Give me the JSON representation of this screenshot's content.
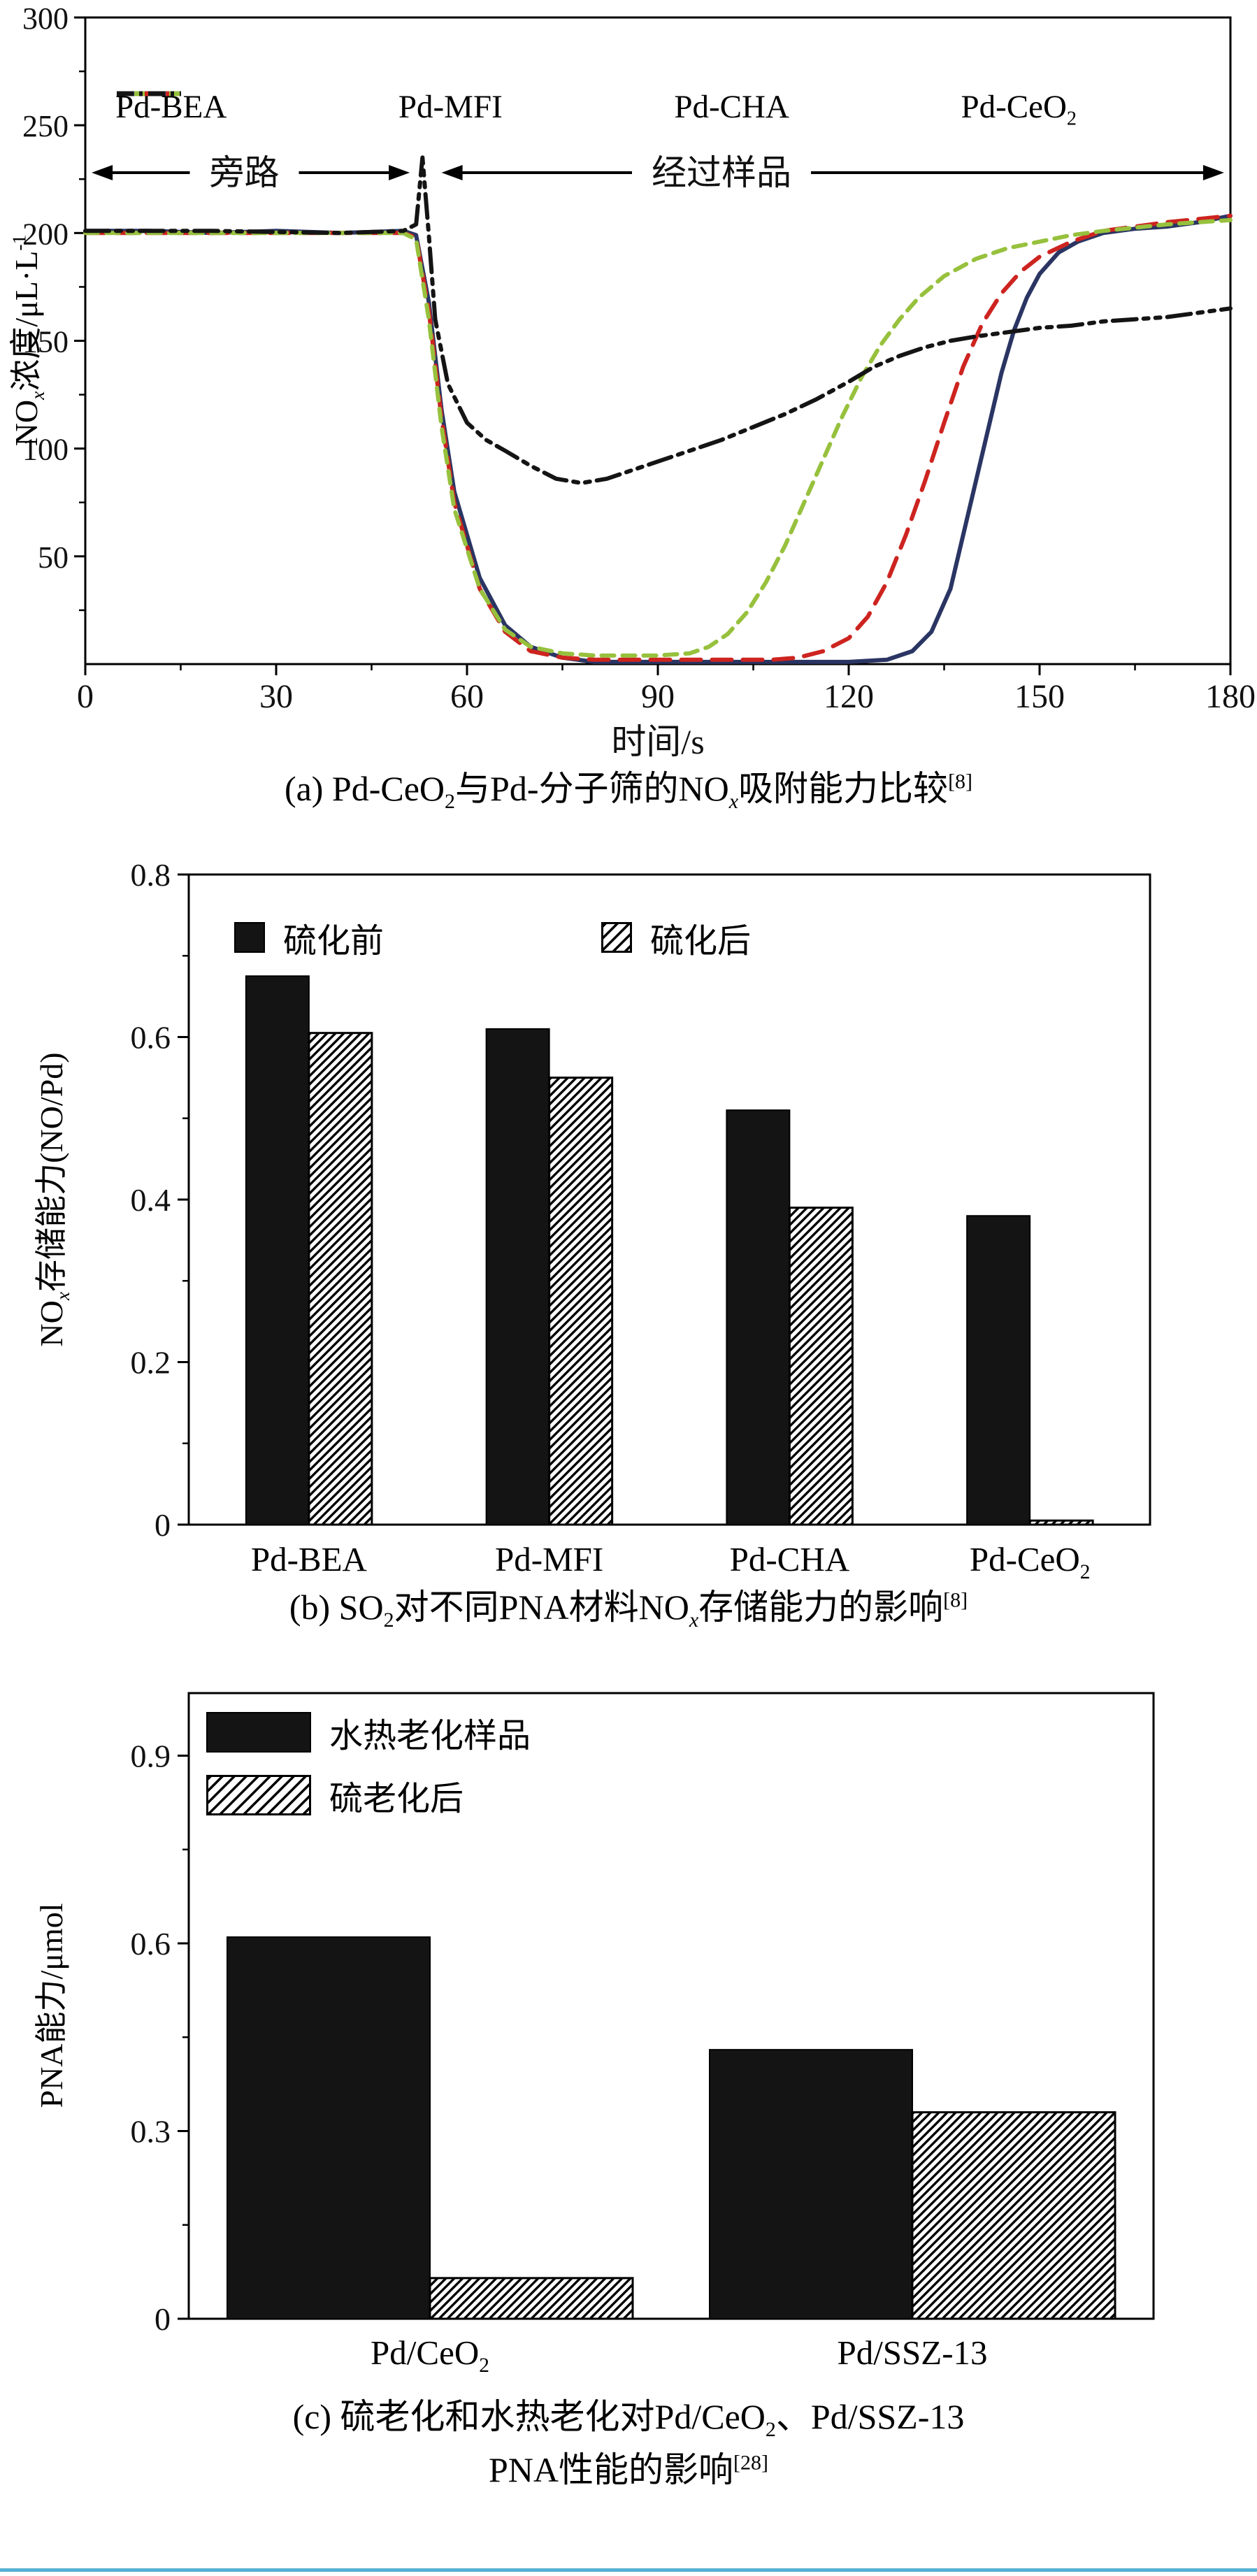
{
  "figure": {
    "background": "#ffffff",
    "divider_color": "#55b0d4"
  },
  "chart_data": [
    {
      "id": "a",
      "type": "line",
      "xlabel": "时间/s",
      "ylabel": [
        {
          "t": "NO"
        },
        {
          "t": "x",
          "m": "subi"
        },
        {
          "t": "浓度/μL·L"
        },
        {
          "t": "-1",
          "m": "sup"
        }
      ],
      "caption": [
        {
          "t": "(a) Pd-CeO"
        },
        {
          "t": "2",
          "m": "sub"
        },
        {
          "t": "与Pd-分子筛的NO"
        },
        {
          "t": "x",
          "m": "subi"
        },
        {
          "t": "吸附能力比较"
        },
        {
          "t": "[8]",
          "m": "sup"
        }
      ],
      "xlim": [
        0,
        180
      ],
      "ylim": [
        0,
        300
      ],
      "xticks": [
        0,
        30,
        60,
        90,
        120,
        150,
        180
      ],
      "xtick_labels": [
        "0",
        "30",
        "60",
        "90",
        "120",
        "150",
        "180"
      ],
      "yticks": [
        50,
        100,
        150,
        200,
        250,
        300
      ],
      "ytick_labels": [
        "50",
        "100",
        "150",
        "200",
        "250",
        "300"
      ],
      "legend_position": "top-inside-row",
      "annotations": [
        {
          "label": "旁路",
          "x0": 1,
          "x1": 51,
          "xc": 25,
          "y": 228
        },
        {
          "label": "经过样品",
          "x0": 56,
          "x1": 179,
          "xc": 100,
          "y": 228
        }
      ],
      "series": [
        {
          "name": [
            {
              "t": "Pd-BEA"
            }
          ],
          "color": "#2a3563",
          "style": "solid",
          "points": [
            [
              0,
              201
            ],
            [
              10,
              201
            ],
            [
              20,
              200
            ],
            [
              30,
              201
            ],
            [
              40,
              200
            ],
            [
              50,
              201
            ],
            [
              52,
              199
            ],
            [
              54,
              168
            ],
            [
              56,
              118
            ],
            [
              58,
              80
            ],
            [
              62,
              40
            ],
            [
              66,
              18
            ],
            [
              70,
              8
            ],
            [
              75,
              3
            ],
            [
              80,
              1
            ],
            [
              90,
              1
            ],
            [
              100,
              1
            ],
            [
              110,
              1
            ],
            [
              120,
              1
            ],
            [
              126,
              2
            ],
            [
              130,
              6
            ],
            [
              133,
              15
            ],
            [
              136,
              35
            ],
            [
              138,
              60
            ],
            [
              140,
              85
            ],
            [
              142,
              110
            ],
            [
              144,
              135
            ],
            [
              146,
              155
            ],
            [
              148,
              170
            ],
            [
              150,
              181
            ],
            [
              153,
              191
            ],
            [
              156,
              196
            ],
            [
              160,
              200
            ],
            [
              165,
              202
            ],
            [
              170,
              203
            ],
            [
              175,
              205
            ],
            [
              180,
              208
            ]
          ]
        },
        {
          "name": [
            {
              "t": "Pd-MFI"
            }
          ],
          "color": "#cd2420",
          "style": "dash",
          "points": [
            [
              0,
              200
            ],
            [
              20,
              200
            ],
            [
              40,
              200
            ],
            [
              50,
              200
            ],
            [
              52,
              198
            ],
            [
              54,
              164
            ],
            [
              56,
              114
            ],
            [
              58,
              75
            ],
            [
              62,
              35
            ],
            [
              66,
              15
            ],
            [
              70,
              6
            ],
            [
              75,
              3
            ],
            [
              80,
              2
            ],
            [
              90,
              2
            ],
            [
              100,
              2
            ],
            [
              108,
              2
            ],
            [
              112,
              3
            ],
            [
              116,
              6
            ],
            [
              120,
              12
            ],
            [
              123,
              22
            ],
            [
              126,
              38
            ],
            [
              129,
              60
            ],
            [
              132,
              85
            ],
            [
              135,
              112
            ],
            [
              138,
              138
            ],
            [
              141,
              158
            ],
            [
              144,
              172
            ],
            [
              147,
              182
            ],
            [
              150,
              189
            ],
            [
              155,
              196
            ],
            [
              160,
              201
            ],
            [
              170,
              205
            ],
            [
              180,
              208
            ]
          ]
        },
        {
          "name": [
            {
              "t": "Pd-CHA"
            }
          ],
          "color": "#97c13d",
          "style": "dash2",
          "points": [
            [
              0,
              200
            ],
            [
              20,
              200
            ],
            [
              40,
              200
            ],
            [
              50,
              200
            ],
            [
              52,
              197
            ],
            [
              54,
              160
            ],
            [
              56,
              110
            ],
            [
              58,
              72
            ],
            [
              62,
              35
            ],
            [
              66,
              16
            ],
            [
              70,
              8
            ],
            [
              75,
              5
            ],
            [
              80,
              4
            ],
            [
              85,
              4
            ],
            [
              90,
              4
            ],
            [
              95,
              5
            ],
            [
              98,
              8
            ],
            [
              101,
              14
            ],
            [
              104,
              24
            ],
            [
              107,
              38
            ],
            [
              110,
              55
            ],
            [
              113,
              75
            ],
            [
              116,
              95
            ],
            [
              119,
              115
            ],
            [
              122,
              133
            ],
            [
              125,
              148
            ],
            [
              128,
              160
            ],
            [
              131,
              170
            ],
            [
              135,
              180
            ],
            [
              140,
              188
            ],
            [
              145,
              193
            ],
            [
              150,
              196
            ],
            [
              155,
              199
            ],
            [
              160,
              201
            ],
            [
              170,
              204
            ],
            [
              180,
              206
            ]
          ]
        },
        {
          "name": [
            {
              "t": "Pd-CeO"
            },
            {
              "t": "2",
              "m": "sub"
            }
          ],
          "color": "#141414",
          "style": "dashdot",
          "points": [
            [
              0,
              201
            ],
            [
              20,
              201
            ],
            [
              40,
              200
            ],
            [
              50,
              201
            ],
            [
              52,
              204
            ],
            [
              53,
              235
            ],
            [
              54,
              199
            ],
            [
              55,
              160
            ],
            [
              57,
              130
            ],
            [
              60,
              112
            ],
            [
              63,
              104
            ],
            [
              66,
              99
            ],
            [
              70,
              92
            ],
            [
              74,
              86
            ],
            [
              78,
              84
            ],
            [
              82,
              86
            ],
            [
              86,
              90
            ],
            [
              90,
              94
            ],
            [
              95,
              99
            ],
            [
              100,
              104
            ],
            [
              105,
              110
            ],
            [
              110,
              116
            ],
            [
              115,
              123
            ],
            [
              120,
              131
            ],
            [
              124,
              138
            ],
            [
              128,
              143
            ],
            [
              132,
              147
            ],
            [
              136,
              150
            ],
            [
              140,
              152
            ],
            [
              145,
              154
            ],
            [
              150,
              156
            ],
            [
              155,
              157
            ],
            [
              160,
              159
            ],
            [
              165,
              160
            ],
            [
              170,
              161
            ],
            [
              175,
              163
            ],
            [
              180,
              165
            ]
          ]
        }
      ]
    },
    {
      "id": "b",
      "type": "bar",
      "ylabel": [
        {
          "t": "NO"
        },
        {
          "t": "x",
          "m": "subi"
        },
        {
          "t": "存储能力(NO/Pd)"
        }
      ],
      "caption": [
        {
          "t": "(b) SO"
        },
        {
          "t": "2",
          "m": "sub"
        },
        {
          "t": "对不同PNA材料NO"
        },
        {
          "t": "x",
          "m": "subi"
        },
        {
          "t": "存储能力的影响"
        },
        {
          "t": "[8]",
          "m": "sup"
        }
      ],
      "ylim": [
        0,
        0.8
      ],
      "yticks": [
        0,
        0.2,
        0.4,
        0.6,
        0.8
      ],
      "ytick_labels": [
        "0",
        "0.2",
        "0.4",
        "0.6",
        "0.8"
      ],
      "legend_position": "top-inside-row",
      "categories": [
        [
          {
            "t": "Pd-BEA"
          }
        ],
        [
          {
            "t": "Pd-MFI"
          }
        ],
        [
          {
            "t": "Pd-CHA"
          }
        ],
        [
          {
            "t": "Pd-CeO"
          },
          {
            "t": "2",
            "m": "sub"
          }
        ]
      ],
      "series": [
        {
          "name": [
            {
              "t": "硫化前"
            }
          ],
          "fill": "solid",
          "color": "#141414",
          "values": [
            0.675,
            0.61,
            0.51,
            0.38
          ]
        },
        {
          "name": [
            {
              "t": "硫化后"
            }
          ],
          "fill": "hatch",
          "color": "#000000",
          "values": [
            0.605,
            0.55,
            0.39,
            0.005
          ]
        }
      ]
    },
    {
      "id": "c",
      "type": "bar",
      "ylabel": [
        {
          "t": "PNA能力/μmol"
        }
      ],
      "caption": [
        {
          "t": "(c) 硫老化和水热老化对Pd/CeO"
        },
        {
          "t": "2",
          "m": "sub"
        },
        {
          "t": "、Pd/SSZ-13"
        }
      ],
      "caption2": [
        {
          "t": "PNA性能的影响"
        },
        {
          "t": "[28]",
          "m": "sup"
        }
      ],
      "ylim": [
        0,
        1.0
      ],
      "yticks": [
        0,
        0.3,
        0.6,
        0.9
      ],
      "ytick_labels": [
        "0",
        "0.3",
        "0.6",
        "0.9"
      ],
      "legend_position": "top-left-inside-column",
      "categories": [
        [
          {
            "t": "Pd/CeO"
          },
          {
            "t": "2",
            "m": "sub"
          }
        ],
        [
          {
            "t": "Pd/SSZ-13"
          }
        ]
      ],
      "series": [
        {
          "name": [
            {
              "t": "水热老化样品"
            }
          ],
          "fill": "solid",
          "color": "#141414",
          "values": [
            0.61,
            0.43
          ]
        },
        {
          "name": [
            {
              "t": "硫老化后"
            }
          ],
          "fill": "hatch",
          "color": "#000000",
          "values": [
            0.065,
            0.33
          ]
        }
      ]
    }
  ]
}
